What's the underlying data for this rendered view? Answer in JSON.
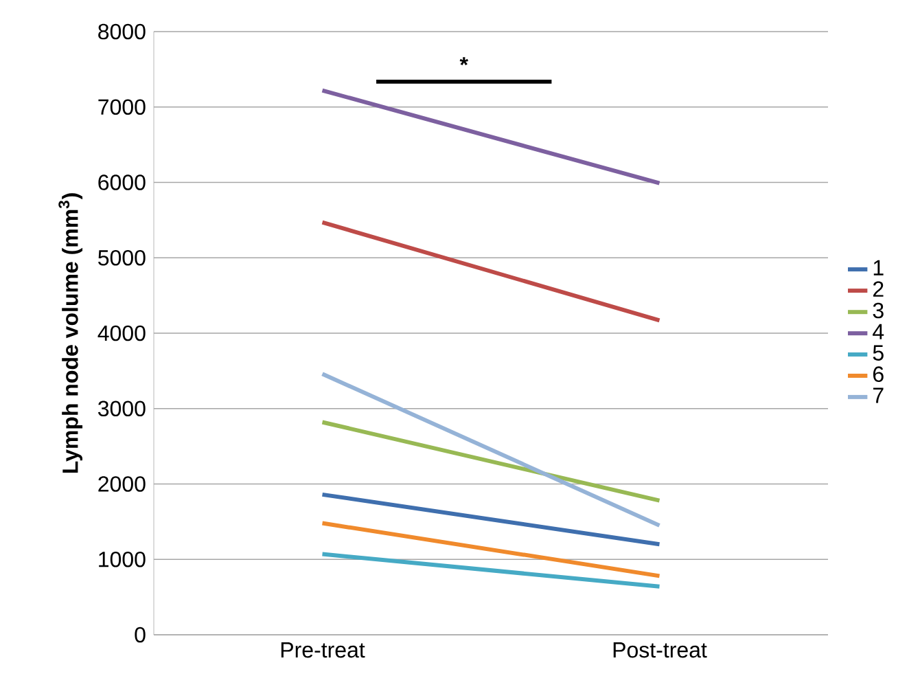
{
  "chart_data": {
    "type": "line",
    "ylabel": "Lymph node volume (mm$^{3}$)",
    "categories": [
      "Pre-treat",
      "Post-treat"
    ],
    "series": [
      {
        "name": "1",
        "color": "#3f6fae",
        "values": [
          1860,
          1200
        ]
      },
      {
        "name": "2",
        "color": "#be4b48",
        "values": [
          5470,
          4170
        ]
      },
      {
        "name": "3",
        "color": "#98b954",
        "values": [
          2820,
          1780
        ]
      },
      {
        "name": "4",
        "color": "#7d60a0",
        "values": [
          7220,
          5990
        ]
      },
      {
        "name": "5",
        "color": "#46aac5",
        "values": [
          1070,
          640
        ]
      },
      {
        "name": "6",
        "color": "#f08a2c",
        "values": [
          1480,
          780
        ]
      },
      {
        "name": "7",
        "color": "#95b3d7",
        "values": [
          3460,
          1450
        ]
      }
    ],
    "ylim": [
      0,
      8000
    ],
    "yticks": [
      0,
      1000,
      2000,
      3000,
      4000,
      5000,
      6000,
      7000,
      8000
    ],
    "grid": "y",
    "legend": "right",
    "marker": "none",
    "line_style": "solid",
    "annotations": [
      "*"
    ]
  }
}
